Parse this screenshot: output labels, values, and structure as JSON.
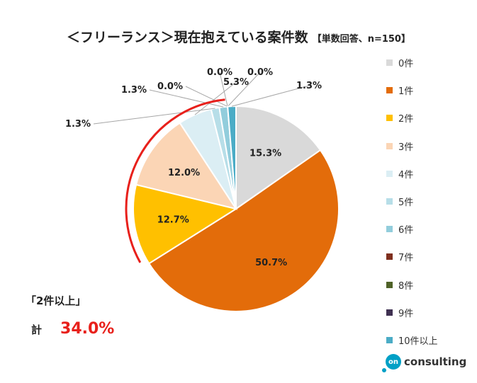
{
  "title": {
    "main": "＜フリーランス＞現在抱えている案件数",
    "sub": "【単数回答、n=150】"
  },
  "chart_data": {
    "type": "pie",
    "categories": [
      "0件",
      "1件",
      "2件",
      "3件",
      "4件",
      "5件",
      "6件",
      "7件",
      "8件",
      "9件",
      "10件以上"
    ],
    "values": [
      15.3,
      50.7,
      12.7,
      12.0,
      5.3,
      1.3,
      1.3,
      0.0,
      0.0,
      0.0,
      1.3
    ],
    "value_labels": [
      "15.3%",
      "50.7%",
      "12.7%",
      "12.0%",
      "5.3%",
      "1.3%",
      "1.3%",
      "0.0%",
      "0.0%",
      "0.0%",
      "1.3%"
    ],
    "colors": [
      "#d9d9d9",
      "#e36c0a",
      "#ffc000",
      "#fbd5b5",
      "#dbeef4",
      "#b7dee8",
      "#92cddc",
      "#7f2f1e",
      "#4f6228",
      "#403152",
      "#4bacc6"
    ],
    "legend_position": "right",
    "start_angle": "12 o'clock, clockwise"
  },
  "highlight": {
    "label": "「2件以上」",
    "prefix": "計",
    "value": "34.0%",
    "color": "#e8201b"
  },
  "brand": {
    "logo_text": "on",
    "name": "consulting",
    "color": "#00a0c6"
  }
}
